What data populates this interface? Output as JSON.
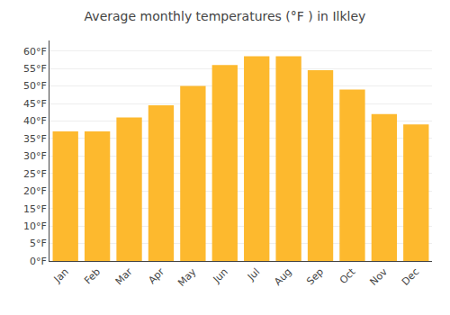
{
  "chart_data": {
    "type": "bar",
    "title": "Average monthly temperatures (°F ) in Ilkley",
    "categories": [
      "Jan",
      "Feb",
      "Mar",
      "Apr",
      "May",
      "Jun",
      "Jul",
      "Aug",
      "Sep",
      "Oct",
      "Nov",
      "Dec"
    ],
    "values": [
      37,
      37,
      41,
      44.5,
      50,
      56,
      58.5,
      58.5,
      54.5,
      49,
      42,
      39
    ],
    "color": "#FDB92E",
    "ylim": [
      0,
      63
    ],
    "yticks": [
      {
        "value": 0,
        "label": "0°F"
      },
      {
        "value": 5,
        "label": "5°F"
      },
      {
        "value": 10,
        "label": "10°F"
      },
      {
        "value": 15,
        "label": "15°F"
      },
      {
        "value": 20,
        "label": "20°F"
      },
      {
        "value": 25,
        "label": "25°F"
      },
      {
        "value": 30,
        "label": "30°F"
      },
      {
        "value": 35,
        "label": "35°F"
      },
      {
        "value": 40,
        "label": "40°F"
      },
      {
        "value": 45,
        "label": "45°F"
      },
      {
        "value": 50,
        "label": "50°F"
      },
      {
        "value": 55,
        "label": "55°F"
      },
      {
        "value": 60,
        "label": "60°F"
      }
    ],
    "grid": true
  }
}
